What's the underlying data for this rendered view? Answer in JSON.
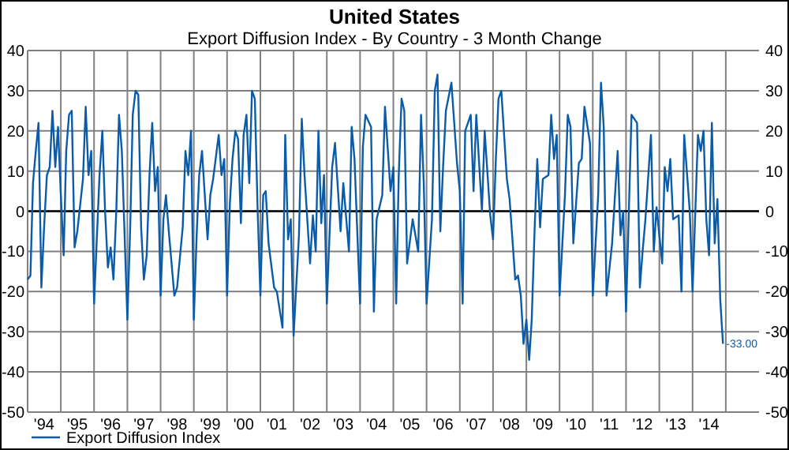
{
  "chart_data": {
    "type": "line",
    "title": "United States",
    "subtitle": "Export Diffusion Index - By Country - 3 Month Change",
    "x": [
      "1994-01",
      "1994-02",
      "1994-03",
      "1994-04",
      "1994-05",
      "1994-06",
      "1994-07",
      "1994-08",
      "1994-09",
      "1994-10",
      "1994-11",
      "1994-12",
      "1995-01",
      "1995-02",
      "1995-03",
      "1995-04",
      "1995-05",
      "1995-06",
      "1995-07",
      "1995-09",
      "1995-10",
      "1995-11",
      "1995-12",
      "1996-01",
      "1996-03",
      "1996-04",
      "1996-05",
      "1996-06",
      "1996-07",
      "1996-08",
      "1996-09",
      "1996-10",
      "1996-11",
      "1997-01",
      "1997-02",
      "1997-03",
      "1997-04",
      "1997-05",
      "1997-06",
      "1997-07",
      "1997-08",
      "1997-09",
      "1997-10",
      "1997-11",
      "1997-12",
      "1998-01",
      "1998-02",
      "1998-03",
      "1998-04",
      "1998-06",
      "1998-07",
      "1998-09",
      "1998-10",
      "1998-11",
      "1998-12",
      "1999-01",
      "1999-02",
      "1999-03",
      "1999-04",
      "1999-06",
      "1999-07",
      "1999-08",
      "1999-10",
      "1999-11",
      "1999-12",
      "2000-01",
      "2000-02",
      "2000-03",
      "2000-04",
      "2000-05",
      "2000-06",
      "2000-07",
      "2000-08",
      "2000-09",
      "2000-10",
      "2000-11",
      "2000-12",
      "2001-01",
      "2001-02",
      "2001-03",
      "2001-04",
      "2001-06",
      "2001-07",
      "2001-09",
      "2001-10",
      "2001-11",
      "2001-12",
      "2002-01",
      "2002-03",
      "2002-04",
      "2002-05",
      "2002-07",
      "2002-08",
      "2002-09",
      "2002-10",
      "2002-11",
      "2002-12",
      "2003-01",
      "2003-03",
      "2003-04",
      "2003-06",
      "2003-07",
      "2003-09",
      "2003-10",
      "2003-11",
      "2004-01",
      "2004-02",
      "2004-03",
      "2004-05",
      "2004-06",
      "2004-07",
      "2004-09",
      "2004-10",
      "2004-12",
      "2005-01",
      "2005-02",
      "2005-03",
      "2005-04",
      "2005-05",
      "2005-06",
      "2005-08",
      "2005-10",
      "2005-11",
      "2005-12",
      "2006-01",
      "2006-03",
      "2006-04",
      "2006-05",
      "2006-06",
      "2006-07",
      "2006-08",
      "2006-10",
      "2006-12",
      "2007-01",
      "2007-02",
      "2007-03",
      "2007-05",
      "2007-06",
      "2007-07",
      "2007-09",
      "2007-10",
      "2007-12",
      "2008-01",
      "2008-02",
      "2008-03",
      "2008-04",
      "2008-06",
      "2008-07",
      "2008-09",
      "2008-10",
      "2008-11",
      "2008-12",
      "2009-01",
      "2009-02",
      "2009-03",
      "2009-04",
      "2009-05",
      "2009-06",
      "2009-07",
      "2009-09",
      "2009-10",
      "2009-11",
      "2009-12",
      "2010-01",
      "2010-03",
      "2010-04",
      "2010-05",
      "2010-06",
      "2010-08",
      "2010-09",
      "2010-10",
      "2010-12",
      "2011-01",
      "2011-03",
      "2011-04",
      "2011-05",
      "2011-06",
      "2011-08",
      "2011-10",
      "2011-11",
      "2011-12",
      "2012-01",
      "2012-02",
      "2012-03",
      "2012-05",
      "2012-06",
      "2012-07",
      "2012-08",
      "2012-10",
      "2012-11",
      "2012-12",
      "2013-02",
      "2013-03",
      "2013-04",
      "2013-05",
      "2013-06",
      "2013-08",
      "2013-09",
      "2013-10",
      "2013-12",
      "2014-01",
      "2014-03",
      "2014-04",
      "2014-05",
      "2014-06",
      "2014-07",
      "2014-08",
      "2014-09",
      "2014-10",
      "2014-11",
      "2014-12"
    ],
    "series": [
      {
        "name": "Export Diffusion Index",
        "color": "#0b5ca8",
        "values": [
          -17,
          -16,
          7,
          15,
          22,
          -19,
          -4,
          9,
          11,
          25,
          11,
          21,
          4,
          -11,
          15,
          24,
          25,
          -9,
          -5,
          8,
          26,
          9,
          15,
          -23,
          9,
          20,
          0,
          -14,
          -9,
          -17,
          0,
          24,
          15,
          -27,
          -4,
          24,
          30,
          29,
          -4,
          -17,
          -11,
          9,
          22,
          5,
          11,
          -21,
          -2,
          4,
          -5,
          -21,
          -19,
          -4,
          15,
          9,
          20,
          -27,
          -6,
          9,
          15,
          -7,
          4,
          8,
          19,
          9,
          13,
          -21,
          2,
          13,
          20,
          18,
          -3,
          19,
          24,
          7,
          30,
          28,
          1,
          -21,
          4,
          5,
          -8,
          -19,
          -20,
          -29,
          19,
          -7,
          -2,
          -31,
          -6,
          23,
          9,
          -13,
          -1,
          -10,
          20,
          -3,
          9,
          -23,
          11,
          17,
          -5,
          7,
          -10,
          21,
          13,
          -23,
          16,
          24,
          21,
          -25,
          -2,
          4,
          26,
          5,
          11,
          -23,
          9,
          28,
          25,
          -13,
          -2,
          -10,
          24,
          7,
          -23,
          -2,
          30,
          34,
          -5,
          11,
          25,
          32,
          12,
          5,
          -23,
          20,
          24,
          5,
          24,
          0,
          20,
          -1,
          -7,
          13,
          28,
          30,
          8,
          3,
          -17,
          -16,
          -21,
          -33,
          -27,
          -37,
          -27,
          -5,
          13,
          -4,
          8,
          9,
          24,
          13,
          19,
          -21,
          4,
          24,
          21,
          -8,
          12,
          13,
          26,
          17,
          -21,
          4,
          32,
          21,
          -21,
          -8,
          15,
          -6,
          0,
          -25,
          0,
          24,
          22,
          -19,
          -10,
          -2,
          19,
          -10,
          1,
          -13,
          11,
          5,
          13,
          -2,
          -1,
          -20,
          19,
          0,
          -20,
          19,
          15,
          20,
          -2,
          -11,
          22,
          -8,
          3,
          -22,
          -33
        ]
      }
    ],
    "xlim": [
      "1994-01",
      "2016-01"
    ],
    "xticks": [
      {
        "value": "1994-07",
        "label": "'94"
      },
      {
        "value": "1995-07",
        "label": "'95"
      },
      {
        "value": "1996-07",
        "label": "'96"
      },
      {
        "value": "1997-07",
        "label": "'97"
      },
      {
        "value": "1998-07",
        "label": "'98"
      },
      {
        "value": "1999-07",
        "label": "'99"
      },
      {
        "value": "2000-07",
        "label": "'00"
      },
      {
        "value": "2001-07",
        "label": "'01"
      },
      {
        "value": "2002-07",
        "label": "'02"
      },
      {
        "value": "2003-07",
        "label": "'03"
      },
      {
        "value": "2004-07",
        "label": "'04"
      },
      {
        "value": "2005-07",
        "label": "'05"
      },
      {
        "value": "2006-07",
        "label": "'06"
      },
      {
        "value": "2007-07",
        "label": "'07"
      },
      {
        "value": "2008-07",
        "label": "'08"
      },
      {
        "value": "2009-07",
        "label": "'09"
      },
      {
        "value": "2010-07",
        "label": "'10"
      },
      {
        "value": "2011-07",
        "label": "'11"
      },
      {
        "value": "2012-07",
        "label": "'12"
      },
      {
        "value": "2013-07",
        "label": "'13"
      },
      {
        "value": "2014-07",
        "label": "'14"
      },
      {
        "value": "1995-01",
        "label": null
      },
      {
        "value": "1996-01",
        "label": null
      },
      {
        "value": "1997-01",
        "label": null
      },
      {
        "value": "1998-01",
        "label": null
      },
      {
        "value": "1999-01",
        "label": null
      },
      {
        "value": "2000-01",
        "label": null
      },
      {
        "value": "2001-01",
        "label": null
      },
      {
        "value": "2002-01",
        "label": null
      },
      {
        "value": "2003-01",
        "label": null
      },
      {
        "value": "2004-01",
        "label": null
      },
      {
        "value": "2005-01",
        "label": null
      },
      {
        "value": "2006-01",
        "label": null
      },
      {
        "value": "2007-01",
        "label": null
      },
      {
        "value": "2008-01",
        "label": null
      },
      {
        "value": "2009-01",
        "label": null
      },
      {
        "value": "2010-01",
        "label": null
      },
      {
        "value": "2011-01",
        "label": null
      },
      {
        "value": "2012-01",
        "label": null
      },
      {
        "value": "2013-01",
        "label": null
      },
      {
        "value": "2014-01",
        "label": null
      },
      {
        "value": "2015-01",
        "label": null
      }
    ],
    "ylim": [
      -50,
      40
    ],
    "yticks": [
      -50,
      -40,
      -30,
      -20,
      -10,
      0,
      10,
      20,
      30,
      40
    ],
    "y2lim": [
      -50,
      40
    ],
    "y2ticks": [
      -50,
      -40,
      -30,
      -20,
      -10,
      0,
      10,
      20,
      30,
      40
    ],
    "ref_lines": [
      {
        "axis": "y",
        "value": 0,
        "color": "#000000"
      }
    ],
    "annotations": [
      {
        "text": "-33.00",
        "x": "2014-12",
        "y": -33
      }
    ],
    "grid": true,
    "legend": "bottom",
    "marker": "none",
    "line_style": "solid"
  }
}
